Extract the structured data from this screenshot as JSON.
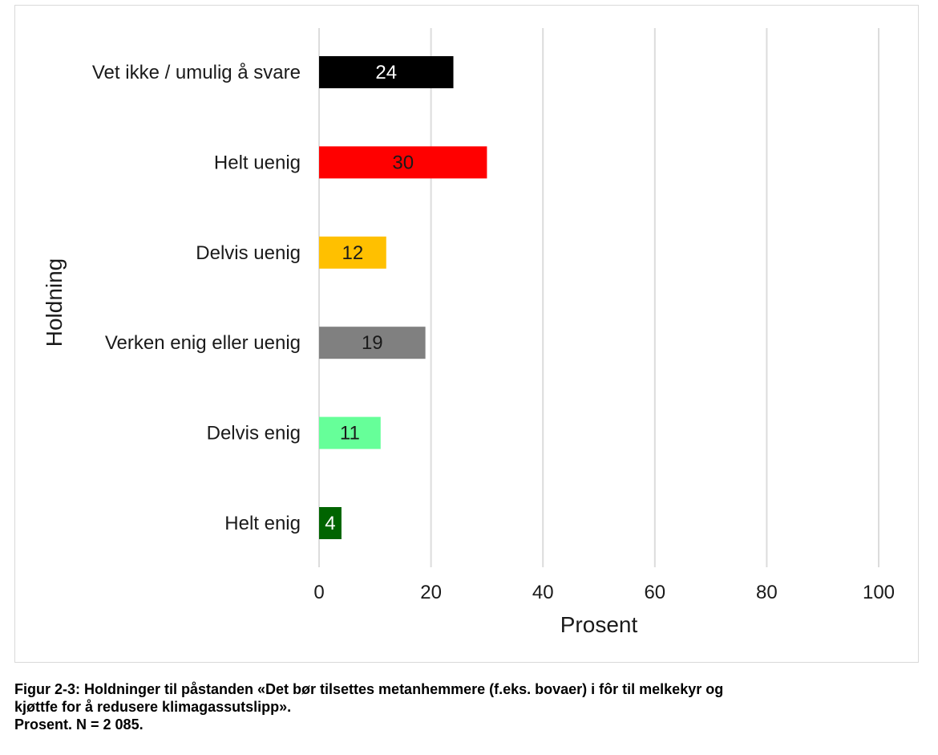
{
  "chart_data": {
    "type": "bar",
    "orientation": "horizontal",
    "categories": [
      "Vet ikke / umulig å svare",
      "Helt uenig",
      "Delvis uenig",
      "Verken enig eller uenig",
      "Delvis enig",
      "Helt enig"
    ],
    "values": [
      24,
      30,
      12,
      19,
      11,
      4
    ],
    "data_labels": [
      "24",
      "30",
      "12",
      "19",
      "11",
      "4"
    ],
    "colors": [
      "#000000",
      "#ff0000",
      "#ffc000",
      "#808080",
      "#66ff99",
      "#006400"
    ],
    "label_colors": [
      "#ffffff",
      "#1a1a1a",
      "#1a1a1a",
      "#1a1a1a",
      "#1a1a1a",
      "#ffffff"
    ],
    "xlabel": "Prosent",
    "ylabel": "Holdning",
    "xlim": [
      0,
      100
    ],
    "xticks": [
      "0",
      "20",
      "40",
      "60",
      "80",
      "100"
    ],
    "grid": "vertical",
    "legend": "none"
  },
  "caption": {
    "line1": "Figur 2-3: Holdninger til påstanden «Det bør tilsettes metanhemmere (f.eks. bovaer) i fôr til melkekyr og",
    "line2": "kjøttfe for å redusere klimagassutslipp».",
    "line3": "Prosent. N = 2 085."
  }
}
